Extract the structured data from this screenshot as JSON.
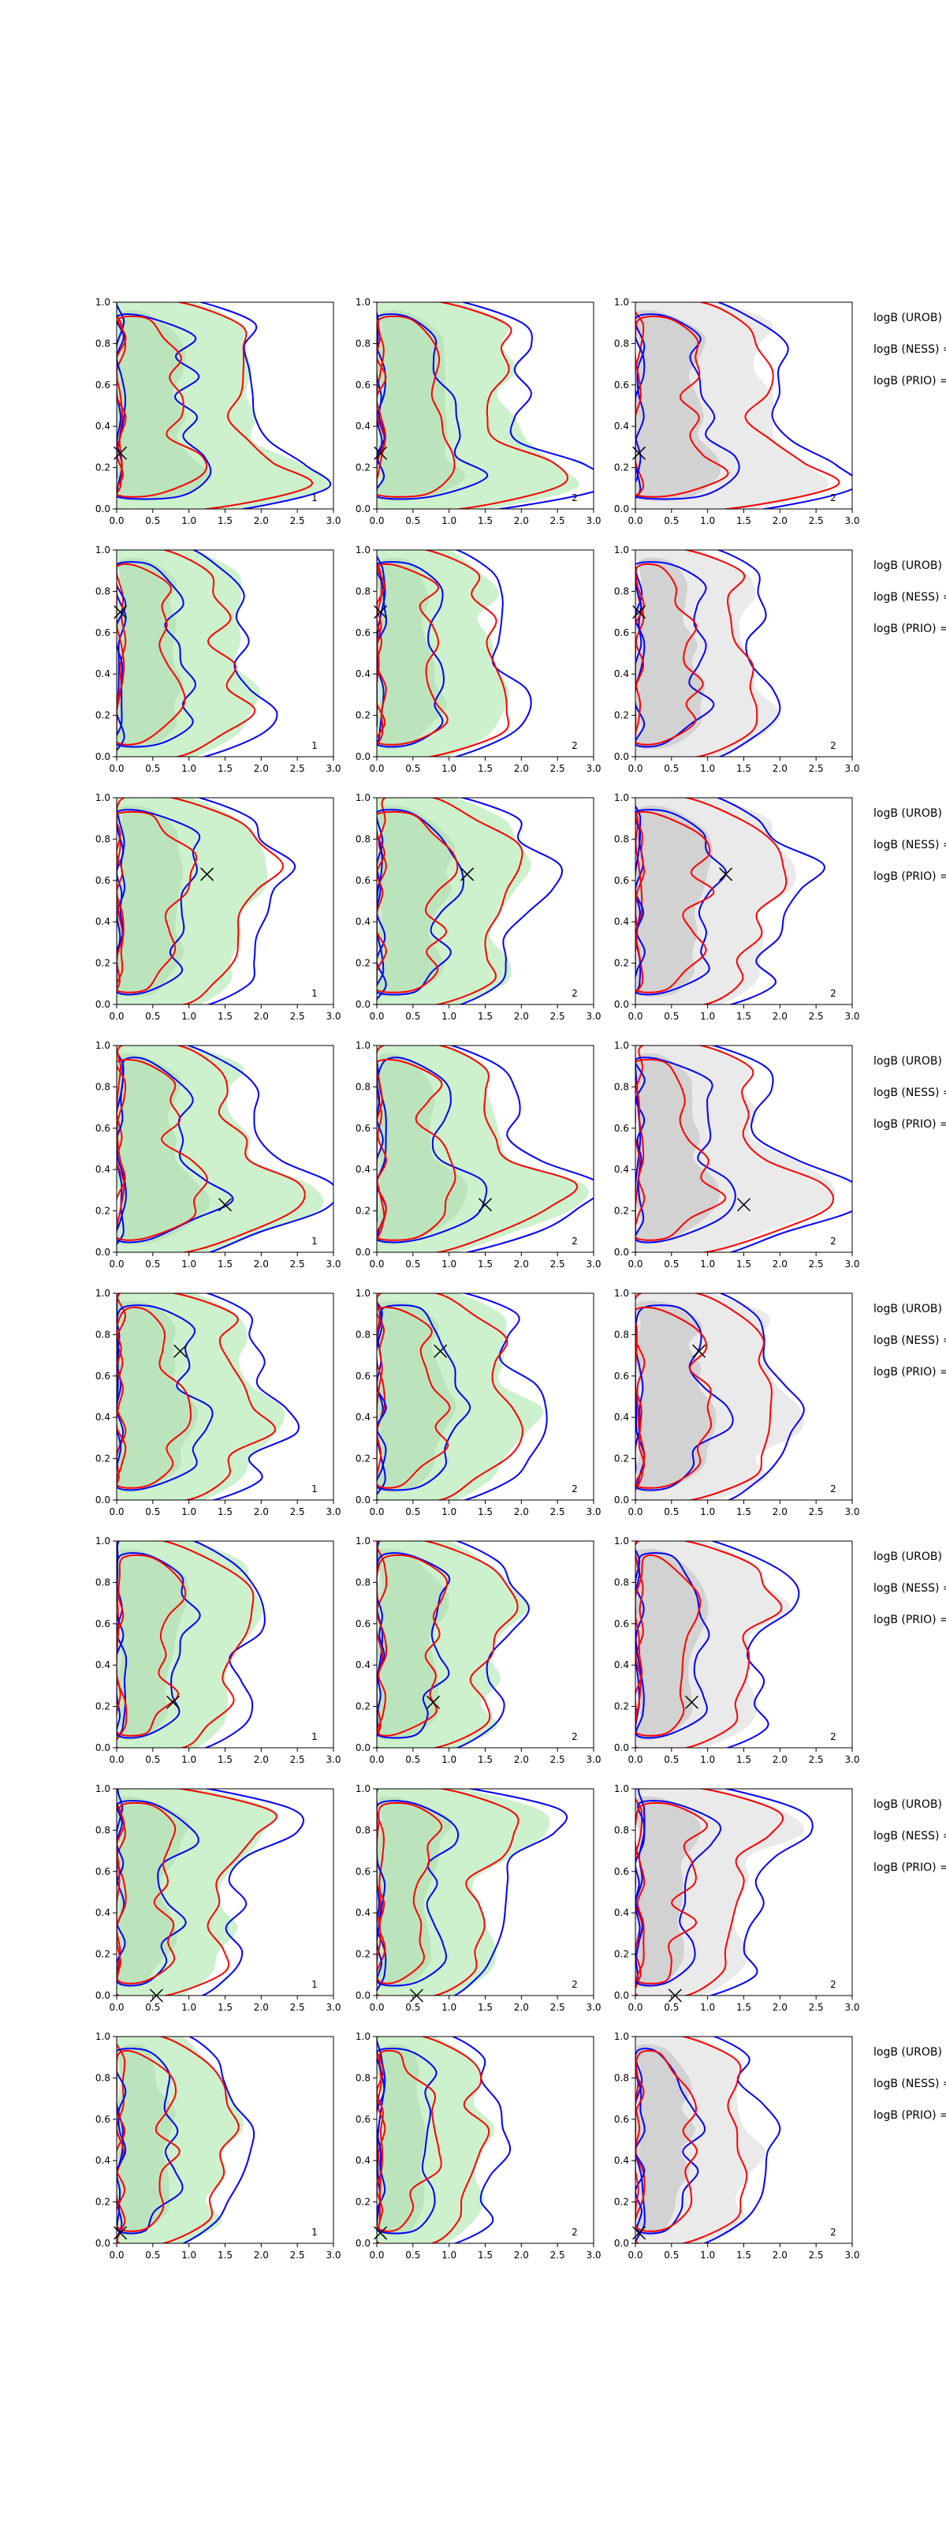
{
  "colors": {
    "green_fill": "#c4efc4",
    "gray_fill": "#d8d8d8",
    "blue_line": "#0000ff",
    "red_line": "#ff0000",
    "true_marker": "#000000"
  },
  "logB_labels": [
    "logB (UROB) =",
    "logB (NESS) =",
    "logB (PRIO) ="
  ],
  "chart_data": {
    "type": "contour",
    "grid": {
      "rows": 8,
      "cols": 3
    },
    "panel_labels": [
      "1",
      "2",
      "2"
    ],
    "xlim": [
      0,
      3
    ],
    "ylim": [
      0,
      1
    ],
    "xticks": [
      "0.0",
      "0.5",
      "1.0",
      "1.5",
      "2.0",
      "2.5",
      "3.0"
    ],
    "yticks": [
      "0.0",
      "0.2",
      "0.4",
      "0.6",
      "0.8",
      "1.0"
    ],
    "rows": [
      {
        "truth": [
          0.05,
          0.27
        ]
      },
      {
        "truth": [
          0.05,
          0.7
        ]
      },
      {
        "truth": [
          1.25,
          0.63
        ]
      },
      {
        "truth": [
          1.5,
          0.23
        ]
      },
      {
        "truth": [
          0.88,
          0.72
        ]
      },
      {
        "truth": [
          0.78,
          0.22
        ]
      },
      {
        "truth": [
          0.55,
          0.0
        ]
      },
      {
        "truth": [
          0.05,
          0.05
        ]
      }
    ]
  }
}
